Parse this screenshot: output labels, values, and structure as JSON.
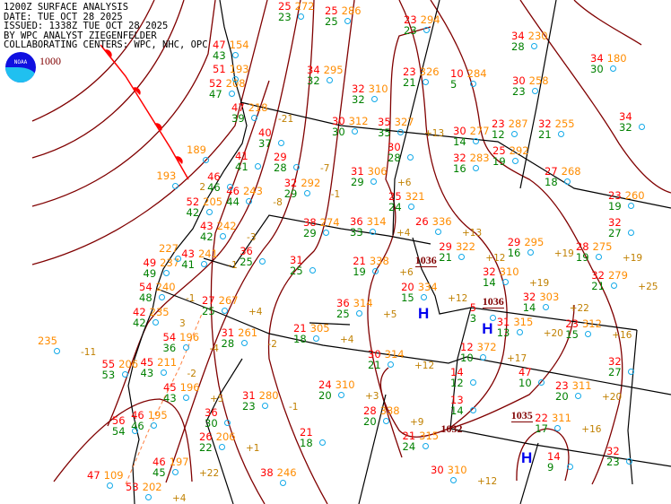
{
  "header": {
    "line1": "1200Z SURFACE ANALYSIS",
    "line2": "DATE: TUE OCT 28 2025",
    "line3": "ISSUED: 1338Z TUE OCT 28 2025",
    "line4": "BY WPC ANALYST ZIEGENFELDER",
    "line5": "COLLABORATING CENTERS: WPC, NHC, OPC"
  },
  "logo": {
    "text": "NOAA"
  },
  "colors": {
    "isobar": "#800000",
    "border": "#000000",
    "front": "#ff0000",
    "temperature": "#ff0000",
    "pressure": "#ff8c00",
    "dewpoint": "#008000",
    "station": "#10a8e8",
    "high": "#0000ee"
  },
  "isobar_labels": [
    "1000",
    "1036",
    "1036",
    "1035",
    "1032"
  ],
  "highs": [
    "H",
    "H",
    "H"
  ],
  "stations": [
    {
      "t": "25",
      "p": "272",
      "d": "23",
      "tend": ""
    },
    {
      "t": "25",
      "p": "286",
      "d": "25",
      "tend": ""
    },
    {
      "t": "23",
      "p": "294",
      "d": "23",
      "tend": ""
    },
    {
      "t": "34",
      "p": "295",
      "d": "32",
      "tend": ""
    },
    {
      "t": "32",
      "p": "310",
      "d": "32",
      "tend": ""
    },
    {
      "t": "30",
      "p": "312",
      "d": "30",
      "tend": ""
    },
    {
      "t": "35",
      "p": "327",
      "d": "35",
      "tend": "+13"
    },
    {
      "t": "23",
      "p": "326",
      "d": "21",
      "tend": ""
    },
    {
      "t": "10",
      "p": "284",
      "d": "5",
      "tend": ""
    },
    {
      "t": "34",
      "p": "230",
      "d": "28",
      "tend": ""
    },
    {
      "t": "34",
      "p": "180",
      "d": "30",
      "tend": ""
    },
    {
      "t": "30",
      "p": "258",
      "d": "23",
      "tend": ""
    },
    {
      "t": "30",
      "p": "277",
      "d": "14",
      "tend": ""
    },
    {
      "t": "23",
      "p": "287",
      "d": "12",
      "tend": ""
    },
    {
      "t": "32",
      "p": "255",
      "d": "21",
      "tend": ""
    },
    {
      "t": "34",
      "p": "",
      "d": "32",
      "tend": ""
    },
    {
      "t": "32",
      "p": "283",
      "d": "16",
      "tend": ""
    },
    {
      "t": "25",
      "p": "292",
      "d": "19",
      "tend": ""
    },
    {
      "t": "27",
      "p": "268",
      "d": "18",
      "tend": ""
    },
    {
      "t": "23",
      "p": "260",
      "d": "19",
      "tend": ""
    },
    {
      "t": "32",
      "p": "",
      "d": "27",
      "tend": ""
    },
    {
      "t": "29",
      "p": "295",
      "d": "16",
      "tend": "+19"
    },
    {
      "t": "28",
      "p": "275",
      "d": "19",
      "tend": "+19"
    },
    {
      "t": "32",
      "p": "279",
      "d": "21",
      "tend": "+25"
    },
    {
      "t": "29",
      "p": "322",
      "d": "21",
      "tend": "+12"
    },
    {
      "t": "20",
      "p": "334",
      "d": "15",
      "tend": "+12"
    },
    {
      "t": "32",
      "p": "310",
      "d": "14",
      "tend": "+19"
    },
    {
      "t": "32",
      "p": "303",
      "d": "14",
      "tend": "+22"
    },
    {
      "t": "5",
      "p": "",
      "d": "3",
      "tend": ""
    },
    {
      "t": "31",
      "p": "315",
      "d": "13",
      "tend": "+20"
    },
    {
      "t": "23",
      "p": "312",
      "d": "15",
      "tend": "+16"
    },
    {
      "t": "12",
      "p": "372",
      "d": "10",
      "tend": "+17"
    },
    {
      "t": "47",
      "p": "",
      "d": "10",
      "tend": ""
    },
    {
      "t": "32",
      "p": "",
      "d": "27",
      "tend": ""
    },
    {
      "t": "14",
      "p": "",
      "d": "12",
      "tend": ""
    },
    {
      "t": "23",
      "p": "311",
      "d": "20",
      "tend": "+20"
    },
    {
      "t": "13",
      "p": "",
      "d": "14",
      "tend": ""
    },
    {
      "t": "22",
      "p": "311",
      "d": "17",
      "tend": "+16"
    },
    {
      "t": "14",
      "p": "",
      "d": "9",
      "tend": ""
    },
    {
      "t": "32",
      "p": "",
      "d": "23",
      "tend": ""
    },
    {
      "t": "30",
      "p": "310",
      "d": "",
      "tend": "+12"
    },
    {
      "t": "21",
      "p": "315",
      "d": "24",
      "tend": ""
    },
    {
      "t": "31",
      "p": "306",
      "d": "29",
      "tend": "+6"
    },
    {
      "t": "25",
      "p": "321",
      "d": "24",
      "tend": ""
    },
    {
      "t": "36",
      "p": "314",
      "d": "33",
      "tend": "+4"
    },
    {
      "t": "26",
      "p": "336",
      "d": "",
      "tend": "+13"
    },
    {
      "t": "30",
      "p": "",
      "d": "28",
      "tend": ""
    },
    {
      "t": "21",
      "p": "338",
      "d": "19",
      "tend": "+6"
    },
    {
      "t": "36",
      "p": "314",
      "d": "25",
      "tend": "+5"
    },
    {
      "t": "32",
      "p": "292",
      "d": "29",
      "tend": "-1"
    },
    {
      "t": "29",
      "p": "",
      "d": "28",
      "tend": "-7"
    },
    {
      "t": "38",
      "p": "274",
      "d": "29",
      "tend": ""
    },
    {
      "t": "31",
      "p": "",
      "d": "25",
      "tend": ""
    },
    {
      "t": "36",
      "p": "",
      "d": "25",
      "tend": ""
    },
    {
      "t": "46",
      "p": "243",
      "d": "44",
      "tend": "-8"
    },
    {
      "t": "41",
      "p": "",
      "d": "41",
      "tend": ""
    },
    {
      "t": "27",
      "p": "267",
      "d": "25",
      "tend": "+4"
    },
    {
      "t": "31",
      "p": "261",
      "d": "28",
      "tend": "-2"
    },
    {
      "t": "21",
      "p": "305",
      "d": "18",
      "tend": "+4"
    },
    {
      "t": "30",
      "p": "314",
      "d": "21",
      "tend": "+12"
    },
    {
      "t": "31",
      "p": "280",
      "d": "23",
      "tend": "-1"
    },
    {
      "t": "24",
      "p": "310",
      "d": "20",
      "tend": "+3"
    },
    {
      "t": "28",
      "p": "338",
      "d": "20",
      "tend": "+9"
    },
    {
      "t": "21",
      "p": "",
      "d": "18",
      "tend": ""
    },
    {
      "t": "38",
      "p": "246",
      "d": "",
      "tend": ""
    },
    {
      "t": "36",
      "p": "",
      "d": "30",
      "tend": ""
    },
    {
      "t": "26",
      "p": "206",
      "d": "22",
      "tend": "+1"
    },
    {
      "t": "46",
      "p": "197",
      "d": "45",
      "tend": "+22"
    },
    {
      "t": "53",
      "p": "202",
      "d": "",
      "tend": "+4"
    },
    {
      "t": "47",
      "p": "109",
      "d": "",
      "tend": ""
    },
    {
      "t": "56",
      "p": "",
      "d": "54",
      "tend": ""
    },
    {
      "t": "46",
      "p": "195",
      "d": "46",
      "tend": ""
    },
    {
      "t": "45",
      "p": "196",
      "d": "43",
      "tend": "+5"
    },
    {
      "t": "45",
      "p": "211",
      "d": "43",
      "tend": "-2"
    },
    {
      "t": "55",
      "p": "206",
      "d": "53",
      "tend": ""
    },
    {
      "t": "54",
      "p": "196",
      "d": "36",
      "tend": "-4"
    },
    {
      "t": "",
      "p": "235",
      "d": "",
      "tend": "-11"
    },
    {
      "t": "42",
      "p": "235",
      "d": "42",
      "tend": "3"
    },
    {
      "t": "54",
      "p": "240",
      "d": "48",
      "tend": "-1"
    },
    {
      "t": "49",
      "p": "237",
      "d": "49",
      "tend": ""
    },
    {
      "t": "",
      "p": "227",
      "d": "",
      "tend": ""
    },
    {
      "t": "43",
      "p": "241",
      "d": "41",
      "tend": "-1"
    },
    {
      "t": "52",
      "p": "205",
      "d": "42",
      "tend": ""
    },
    {
      "t": "43",
      "p": "242",
      "d": "42",
      "tend": "-3"
    },
    {
      "t": "46",
      "p": "",
      "d": "46",
      "tend": ""
    },
    {
      "t": "",
      "p": "193",
      "d": "",
      "tend": "2"
    },
    {
      "t": "",
      "p": "189",
      "d": "",
      "tend": ""
    },
    {
      "t": "52",
      "p": "208",
      "d": "47",
      "tend": ""
    },
    {
      "t": "47",
      "p": "154",
      "d": "43",
      "tend": ""
    },
    {
      "t": "51",
      "p": "193",
      "d": "",
      "tend": ""
    },
    {
      "t": "47",
      "p": "218",
      "d": "39",
      "tend": "-21"
    },
    {
      "t": "40",
      "p": "",
      "d": "37",
      "tend": ""
    }
  ]
}
